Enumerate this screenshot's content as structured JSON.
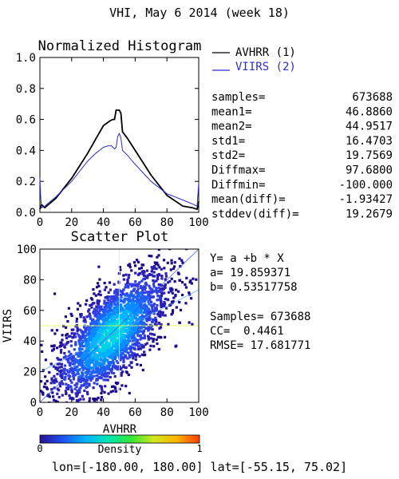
{
  "page": {
    "title": "VHI,  May 6 2014 (week 18)",
    "footer": "lon=[-180.00, 180.00] lat=[-55.15, 75.02]"
  },
  "histogram": {
    "title": "Normalized Histogram",
    "legend": [
      {
        "label": "AVHRR (1)",
        "color": "#000000"
      },
      {
        "label": "VIIRS (2)",
        "color": "#2b2bd0"
      }
    ],
    "x_ticks": [
      "0",
      "20",
      "40",
      "60",
      "80",
      "100"
    ],
    "y_ticks": [
      "0.0",
      "0.2",
      "0.4",
      "0.6",
      "0.8",
      "1.0"
    ]
  },
  "stats": [
    {
      "label": "samples=",
      "value": "673688"
    },
    {
      "label": "mean1=",
      "value": "46.8860"
    },
    {
      "label": "mean2=",
      "value": "44.9517"
    },
    {
      "label": "std1=",
      "value": "16.4703"
    },
    {
      "label": "std2=",
      "value": "19.7569"
    },
    {
      "label": "Diffmax=",
      "value": "97.6800"
    },
    {
      "label": "Diffmin=",
      "value": "-100.000"
    },
    {
      "label": "mean(diff)=",
      "value": "-1.93427"
    },
    {
      "label": "stddev(diff)=",
      "value": "19.2679"
    }
  ],
  "scatter": {
    "title": "Scatter Plot",
    "xlabel": "AVHRR",
    "ylabel": "VIIRS",
    "x_ticks": [
      "0",
      "20",
      "40",
      "60",
      "80",
      "100"
    ],
    "y_ticks": [
      "0",
      "20",
      "40",
      "60",
      "80",
      "100"
    ],
    "fit_lines": [
      "Y= a +b * X",
      "a= 19.859371",
      "b= 0.53517758"
    ],
    "metric_lines": [
      "Samples= 673688",
      "CC=  0.4461",
      "RMSE= 17.681771"
    ]
  },
  "colorbar": {
    "label": "Density",
    "min_label": "0",
    "max_label": "1",
    "colors": [
      "#2a1196",
      "#1e50f0",
      "#00b4ff",
      "#00e6b4",
      "#32e632",
      "#d2e61e",
      "#ffb400",
      "#ff3c00"
    ]
  },
  "chart_data": [
    {
      "type": "line",
      "title": "Normalized Histogram",
      "xlim": [
        0,
        100
      ],
      "ylim": [
        0,
        1.0
      ],
      "series": [
        {
          "name": "AVHRR (1)",
          "color": "#000000",
          "x": [
            0,
            1,
            3,
            10,
            20,
            30,
            35,
            40,
            44,
            46,
            47,
            48,
            49,
            50,
            51,
            52,
            55,
            60,
            70,
            80,
            90,
            96,
            99,
            100
          ],
          "y": [
            0.02,
            0.05,
            0.03,
            0.09,
            0.22,
            0.38,
            0.47,
            0.56,
            0.59,
            0.6,
            0.6,
            0.66,
            0.66,
            0.66,
            0.64,
            0.52,
            0.48,
            0.4,
            0.24,
            0.11,
            0.04,
            0.03,
            0.02,
            0.07
          ]
        },
        {
          "name": "VIIRS (2)",
          "color": "#2b2bd0",
          "x": [
            0,
            0.5,
            1,
            3,
            10,
            20,
            30,
            35,
            40,
            43,
            45,
            46,
            47,
            48,
            49,
            50,
            51,
            52,
            55,
            60,
            70,
            80,
            90,
            97,
            99,
            100
          ],
          "y": [
            0.22,
            0.1,
            0.03,
            0.04,
            0.1,
            0.2,
            0.33,
            0.38,
            0.42,
            0.43,
            0.43,
            0.42,
            0.41,
            0.42,
            0.49,
            0.51,
            0.48,
            0.4,
            0.37,
            0.31,
            0.2,
            0.12,
            0.08,
            0.05,
            0.04,
            0.19
          ]
        }
      ]
    },
    {
      "type": "scatter",
      "title": "Scatter Plot",
      "xlabel": "AVHRR",
      "ylabel": "VIIRS",
      "xlim": [
        0,
        100
      ],
      "ylim": [
        0,
        100
      ],
      "regression": {
        "a": 19.859371,
        "b": 0.53517758
      },
      "samples": 673688,
      "cc": 0.4461,
      "rmse": 17.681771
    }
  ]
}
